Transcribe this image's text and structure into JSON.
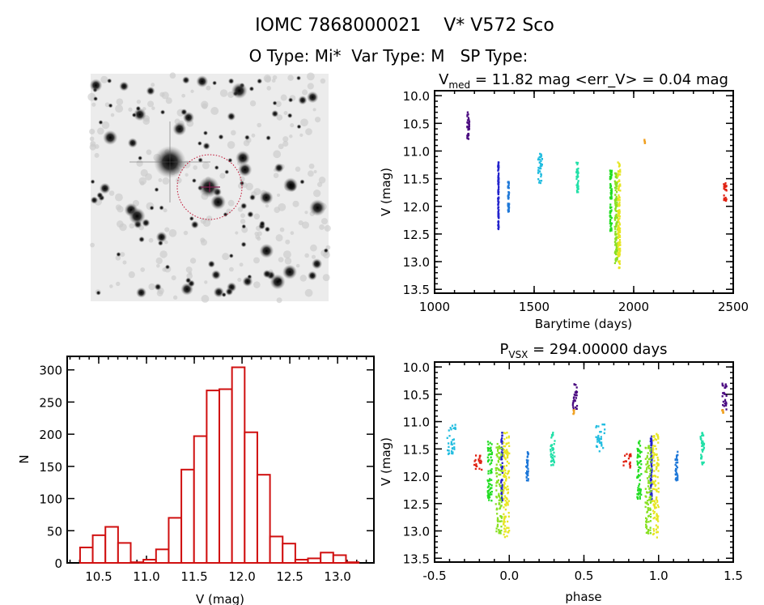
{
  "header": {
    "title": "IOMC 7868000021    V* V572 Sco",
    "subtitle": "O Type: Mi*  Var Type: M   SP Type:"
  },
  "chart_data": [
    {
      "id": "light-curve",
      "type": "scatter",
      "title": {
        "main": "V",
        "sub": "med",
        "rest": " = 11.82 mag <err_V> = 0.04 mag"
      },
      "xlabel": "Barytime (days)",
      "ylabel": "V (mag)",
      "xlim": [
        1000,
        2500
      ],
      "ylim": [
        13.57,
        9.91
      ],
      "y_inverted": true,
      "xticks": [
        1000,
        1500,
        2000,
        2500
      ],
      "yticks": [
        10.0,
        10.5,
        11.0,
        11.5,
        12.0,
        12.5,
        13.0,
        13.5
      ],
      "grid": false,
      "clusters": [
        {
          "x": [
            1163,
            1175
          ],
          "v": [
            10.3,
            10.8
          ],
          "color": "#4a0a80"
        },
        {
          "x": [
            1318,
            1322
          ],
          "v": [
            11.2,
            12.45
          ],
          "color": "#2222cc"
        },
        {
          "x": [
            1368,
            1374
          ],
          "v": [
            11.55,
            12.1
          ],
          "color": "#1e78d8"
        },
        {
          "x": [
            1518,
            1540
          ],
          "v": [
            11.05,
            11.6
          ],
          "color": "#22bde0"
        },
        {
          "x": [
            1712,
            1722
          ],
          "v": [
            11.2,
            11.8
          ],
          "color": "#22e0a8"
        },
        {
          "x": [
            1880,
            1890
          ],
          "v": [
            11.35,
            12.45
          ],
          "color": "#22dd22"
        },
        {
          "x": [
            1905,
            1918
          ],
          "v": [
            11.4,
            13.05
          ],
          "color": "#88e022"
        },
        {
          "x": [
            1920,
            1932
          ],
          "v": [
            11.2,
            13.12
          ],
          "color": "#e6e622"
        },
        {
          "x": [
            2053,
            2058
          ],
          "v": [
            10.78,
            10.86
          ],
          "color": "#f0a020"
        },
        {
          "x": [
            2452,
            2468
          ],
          "v": [
            11.58,
            11.9
          ],
          "color": "#e02010"
        }
      ]
    },
    {
      "id": "histogram",
      "type": "bar",
      "xlabel": "V (mag)",
      "ylabel": "N",
      "xlim": [
        10.17,
        13.38
      ],
      "ylim": [
        0,
        321
      ],
      "xticks": [
        10.5,
        11.0,
        11.5,
        12.0,
        12.5,
        13.0
      ],
      "yticks": [
        0,
        50,
        100,
        150,
        200,
        250,
        300
      ],
      "grid": false,
      "bar_color": "#d01010",
      "bin_start": 10.305,
      "bin_width": 0.1325,
      "values": [
        24,
        43,
        56,
        31,
        1,
        5,
        21,
        70,
        145,
        197,
        268,
        270,
        304,
        203,
        137,
        41,
        30,
        5,
        7,
        16,
        12,
        1
      ]
    },
    {
      "id": "phase-curve",
      "type": "scatter",
      "title": {
        "main": "P",
        "sub": "VSX",
        "rest": " = 294.00000 days"
      },
      "xlabel": "phase",
      "ylabel": "V (mag)",
      "xlim": [
        -0.5,
        1.5
      ],
      "ylim": [
        13.57,
        9.91
      ],
      "y_inverted": true,
      "xticks": [
        -0.5,
        0.0,
        0.5,
        1.0,
        1.5
      ],
      "yticks": [
        10.0,
        10.5,
        11.0,
        11.5,
        12.0,
        12.5,
        13.0,
        13.5
      ],
      "grid": false,
      "clusters": [
        {
          "phases": [
            0.44,
            1.44
          ],
          "w": 0.03,
          "v": [
            10.3,
            10.8
          ],
          "color": "#4a0a80"
        },
        {
          "phases": [
            -0.05,
            0.95
          ],
          "w": 0.01,
          "v": [
            11.2,
            12.45
          ],
          "color": "#2222cc"
        },
        {
          "phases": [
            0.12,
            1.12
          ],
          "w": 0.015,
          "v": [
            11.55,
            12.1
          ],
          "color": "#1e78d8"
        },
        {
          "phases": [
            -0.39,
            0.61
          ],
          "w": 0.06,
          "v": [
            11.05,
            11.6
          ],
          "color": "#22bde0"
        },
        {
          "phases": [
            0.29,
            1.29
          ],
          "w": 0.03,
          "v": [
            11.2,
            11.8
          ],
          "color": "#22e0a8"
        },
        {
          "phases": [
            -0.13,
            0.87
          ],
          "w": 0.03,
          "v": [
            11.35,
            12.45
          ],
          "color": "#22dd22"
        },
        {
          "phases": [
            -0.07,
            0.93
          ],
          "w": 0.04,
          "v": [
            11.4,
            13.05
          ],
          "color": "#88e022"
        },
        {
          "phases": [
            -0.02,
            0.98
          ],
          "w": 0.04,
          "v": [
            11.2,
            13.12
          ],
          "color": "#e6e622"
        },
        {
          "phases": [
            0.43,
            1.43
          ],
          "w": 0.01,
          "v": [
            10.78,
            10.86
          ],
          "color": "#f0a020"
        },
        {
          "phases": [
            -0.21,
            0.79
          ],
          "w": 0.05,
          "v": [
            11.58,
            11.9
          ],
          "color": "#e02010"
        }
      ]
    }
  ],
  "image_panel": {
    "description_icon": "sky-image",
    "circle_color": "#c01030"
  }
}
